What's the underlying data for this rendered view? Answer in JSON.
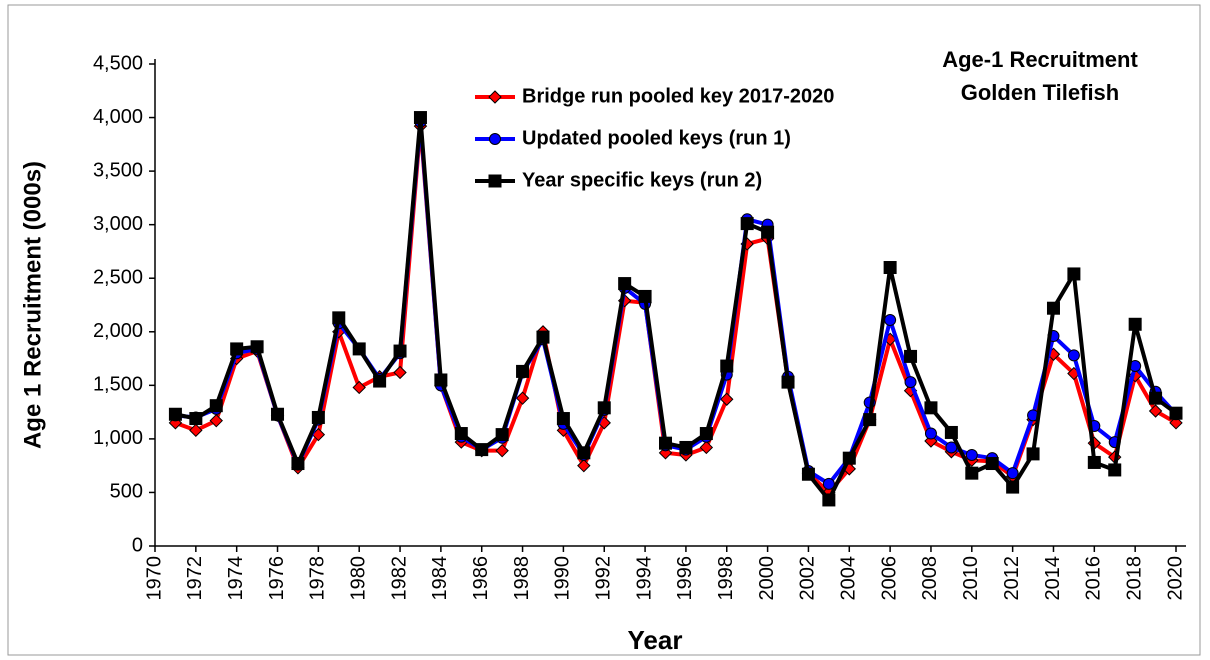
{
  "chart_data": {
    "type": "line",
    "title": "Age-1 Recruitment",
    "subtitle": "Golden Tilefish",
    "x_label": "Year",
    "y_label": "Age 1 Recruitment (000s)",
    "x": [
      1971,
      1972,
      1973,
      1974,
      1975,
      1976,
      1977,
      1978,
      1979,
      1980,
      1981,
      1982,
      1983,
      1984,
      1985,
      1986,
      1987,
      1988,
      1989,
      1990,
      1991,
      1992,
      1993,
      1994,
      1995,
      1996,
      1997,
      1998,
      1999,
      2000,
      2001,
      2002,
      2003,
      2004,
      2005,
      2006,
      2007,
      2008,
      2009,
      2010,
      2011,
      2012,
      2013,
      2014,
      2015,
      2016,
      2017,
      2018,
      2019,
      2020
    ],
    "series": [
      {
        "name": "Bridge run pooled key 2017-2020",
        "color": "#ff0000",
        "marker": "diamond",
        "values": [
          1150,
          1080,
          1170,
          1750,
          1820,
          1220,
          730,
          1040,
          2000,
          1480,
          1580,
          1620,
          3920,
          1500,
          970,
          890,
          890,
          1380,
          2000,
          1080,
          750,
          1150,
          2290,
          2270,
          870,
          850,
          920,
          1370,
          2820,
          2870,
          1540,
          680,
          500,
          720,
          1180,
          1930,
          1450,
          980,
          880,
          800,
          790,
          650,
          1180,
          1790,
          1610,
          960,
          830,
          1590,
          1260,
          1150
        ]
      },
      {
        "name": "Updated pooled keys (run 1)",
        "color": "#0000ff",
        "marker": "circle",
        "values": [
          1220,
          1200,
          1280,
          1800,
          1840,
          1220,
          760,
          1180,
          2080,
          1840,
          1560,
          1800,
          3960,
          1500,
          1020,
          900,
          1010,
          1620,
          1930,
          1140,
          850,
          1270,
          2410,
          2260,
          940,
          900,
          1020,
          1600,
          3050,
          3000,
          1580,
          700,
          580,
          820,
          1340,
          2110,
          1530,
          1050,
          920,
          850,
          820,
          680,
          1220,
          1960,
          1780,
          1120,
          970,
          1680,
          1440,
          1230
        ]
      },
      {
        "name": "Year specific keys (run 2)",
        "color": "#000000",
        "marker": "square",
        "values": [
          1230,
          1190,
          1310,
          1840,
          1860,
          1230,
          770,
          1200,
          2130,
          1840,
          1540,
          1820,
          4000,
          1550,
          1050,
          900,
          1040,
          1630,
          1950,
          1190,
          870,
          1290,
          2450,
          2330,
          960,
          920,
          1050,
          1680,
          3010,
          2930,
          1530,
          670,
          430,
          820,
          1180,
          2600,
          1770,
          1290,
          1060,
          680,
          770,
          550,
          860,
          2220,
          2540,
          780,
          710,
          2070,
          1380,
          1240
        ]
      }
    ],
    "xlim": [
      1970,
      2020
    ],
    "xticks": [
      1970,
      1972,
      1974,
      1976,
      1978,
      1980,
      1982,
      1984,
      1986,
      1988,
      1990,
      1992,
      1994,
      1996,
      1998,
      2000,
      2002,
      2004,
      2006,
      2008,
      2010,
      2012,
      2014,
      2016,
      2018,
      2020
    ],
    "ylim": [
      0,
      4500
    ],
    "yticks": [
      0,
      500,
      {
        "value": 1000,
        "label": "1,000"
      },
      {
        "value": 1500,
        "label": "1,500"
      },
      {
        "value": 2000,
        "label": "2,000"
      },
      {
        "value": 2500,
        "label": "2,500"
      },
      {
        "value": 3000,
        "label": "3,000"
      },
      {
        "value": 3500,
        "label": "3,500"
      },
      {
        "value": 4000,
        "label": "4,000"
      },
      {
        "value": 4500,
        "label": "4,500"
      }
    ],
    "grid": false,
    "legend": "upper left"
  }
}
